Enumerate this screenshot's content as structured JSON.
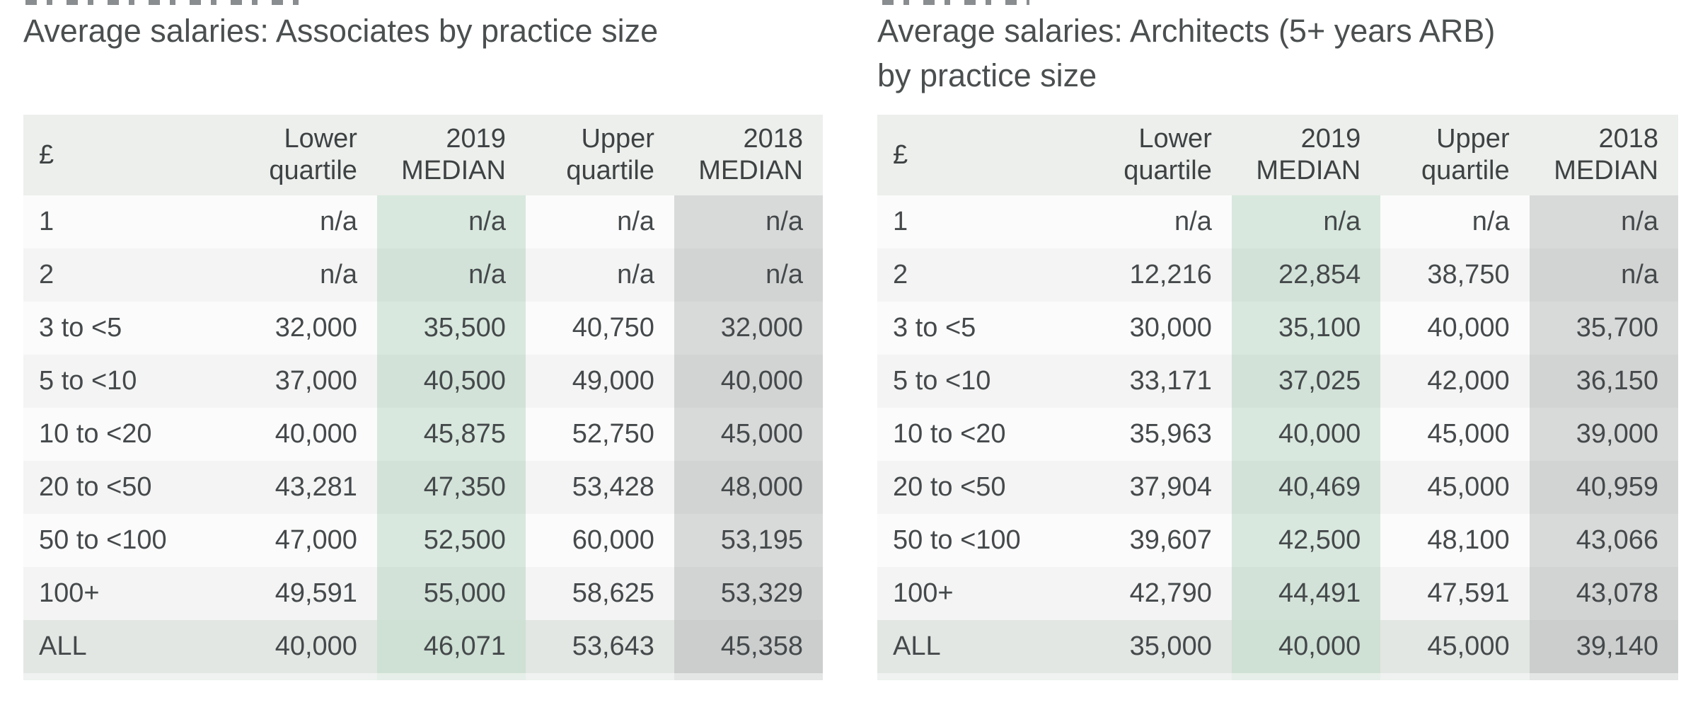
{
  "colors": {
    "header_background": "#ecefec",
    "median_2019_highlight": "#d8e8de",
    "median_2018_highlight": "#d8dad9",
    "total_row_background": "#e2e7e3",
    "row_alt_background": "#f3f4f3",
    "title_text": "#4b4f50",
    "body_text": "#45494b"
  },
  "tables": [
    {
      "title_lines": [
        "Average salaries: Associates by practice size",
        ""
      ],
      "currency_symbol": "£",
      "columns": [
        {
          "line1": "Lower",
          "line2": "quartile"
        },
        {
          "line1": "2019",
          "line2": "MEDIAN"
        },
        {
          "line1": "Upper",
          "line2": "quartile"
        },
        {
          "line1": "2018",
          "line2": "MEDIAN"
        }
      ],
      "rows": [
        {
          "label": "1",
          "values": [
            "n/a",
            "n/a",
            "n/a",
            "n/a"
          ],
          "is_total": false
        },
        {
          "label": "2",
          "values": [
            "n/a",
            "n/a",
            "n/a",
            "n/a"
          ],
          "is_total": false
        },
        {
          "label": "3 to <5",
          "values": [
            "32,000",
            "35,500",
            "40,750",
            "32,000"
          ],
          "is_total": false
        },
        {
          "label": "5 to <10",
          "values": [
            "37,000",
            "40,500",
            "49,000",
            "40,000"
          ],
          "is_total": false
        },
        {
          "label": "10 to <20",
          "values": [
            "40,000",
            "45,875",
            "52,750",
            "45,000"
          ],
          "is_total": false
        },
        {
          "label": "20 to <50",
          "values": [
            "43,281",
            "47,350",
            "53,428",
            "48,000"
          ],
          "is_total": false
        },
        {
          "label": "50 to <100",
          "values": [
            "47,000",
            "52,500",
            "60,000",
            "53,195"
          ],
          "is_total": false
        },
        {
          "label": "100+",
          "values": [
            "49,591",
            "55,000",
            "58,625",
            "53,329"
          ],
          "is_total": false
        },
        {
          "label": "ALL",
          "values": [
            "40,000",
            "46,071",
            "53,643",
            "45,358"
          ],
          "is_total": true
        }
      ]
    },
    {
      "title_lines": [
        "Average salaries: Architects (5+ years ARB)",
        "by practice size"
      ],
      "currency_symbol": "£",
      "columns": [
        {
          "line1": "Lower",
          "line2": "quartile"
        },
        {
          "line1": "2019",
          "line2": "MEDIAN"
        },
        {
          "line1": "Upper",
          "line2": "quartile"
        },
        {
          "line1": "2018",
          "line2": "MEDIAN"
        }
      ],
      "rows": [
        {
          "label": "1",
          "values": [
            "n/a",
            "n/a",
            "n/a",
            "n/a"
          ],
          "is_total": false
        },
        {
          "label": "2",
          "values": [
            "12,216",
            "22,854",
            "38,750",
            "n/a"
          ],
          "is_total": false
        },
        {
          "label": "3 to <5",
          "values": [
            "30,000",
            "35,100",
            "40,000",
            "35,700"
          ],
          "is_total": false
        },
        {
          "label": "5 to <10",
          "values": [
            "33,171",
            "37,025",
            "42,000",
            "36,150"
          ],
          "is_total": false
        },
        {
          "label": "10 to <20",
          "values": [
            "35,963",
            "40,000",
            "45,000",
            "39,000"
          ],
          "is_total": false
        },
        {
          "label": "20 to <50",
          "values": [
            "37,904",
            "40,469",
            "45,000",
            "40,959"
          ],
          "is_total": false
        },
        {
          "label": "50 to <100",
          "values": [
            "39,607",
            "42,500",
            "48,100",
            "43,066"
          ],
          "is_total": false
        },
        {
          "label": "100+",
          "values": [
            "42,790",
            "44,491",
            "47,591",
            "43,078"
          ],
          "is_total": false
        },
        {
          "label": "ALL",
          "values": [
            "35,000",
            "40,000",
            "45,000",
            "39,140"
          ],
          "is_total": true
        }
      ]
    }
  ]
}
